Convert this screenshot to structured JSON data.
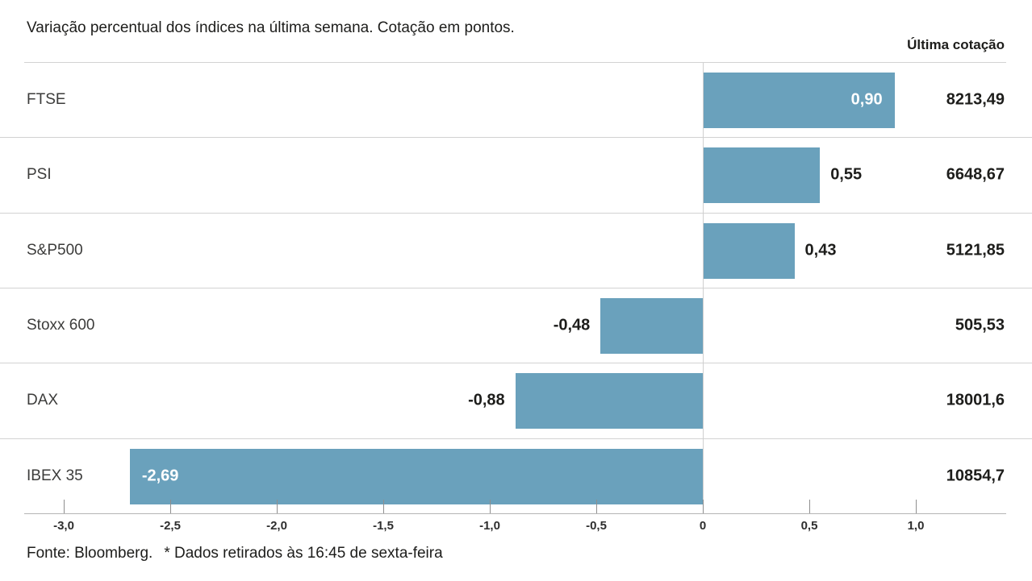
{
  "header": {
    "title": "Variação percentual dos índices na última semana. Cotação em pontos.",
    "last_quote_label": "Última cotação"
  },
  "chart_data": {
    "type": "bar",
    "orientation": "horizontal",
    "title": "Variação percentual dos índices na última semana. Cotação em pontos.",
    "categories": [
      "FTSE",
      "PSI",
      "S&P500",
      "Stoxx 600",
      "DAX",
      "IBEX 35"
    ],
    "series": [
      {
        "name": "Variação percentual na última semana (%)",
        "values": [
          0.9,
          0.55,
          0.43,
          -0.48,
          -0.88,
          -2.69
        ]
      },
      {
        "name": "Última cotação (pontos)",
        "values": [
          "8213,49",
          "6648,67",
          "5121,85",
          "505,53",
          "18001,6",
          "10854,7"
        ]
      }
    ],
    "value_labels": [
      "0,90",
      "0,55",
      "0,43",
      "-0,48",
      "-0,88",
      "-2,69"
    ],
    "label_inside": [
      true,
      false,
      false,
      false,
      false,
      true
    ],
    "xlim": [
      -3.19,
      1.41
    ],
    "x_ticks": {
      "values": [
        -3.0,
        -2.5,
        -2.0,
        -1.5,
        -1.0,
        -0.5,
        0,
        0.5,
        1.0
      ],
      "labels": [
        "-3,0",
        "-2,5",
        "-2,0",
        "-1,5",
        "-1,0",
        "-0,5",
        "0",
        "0,5",
        "1,0"
      ]
    },
    "grid": false,
    "legend": "none",
    "bar_color": "#6aa1bc"
  },
  "footer": {
    "source": "Fonte: Bloomberg.",
    "note": "* Dados retirados às 16:45 de sexta-feira"
  }
}
